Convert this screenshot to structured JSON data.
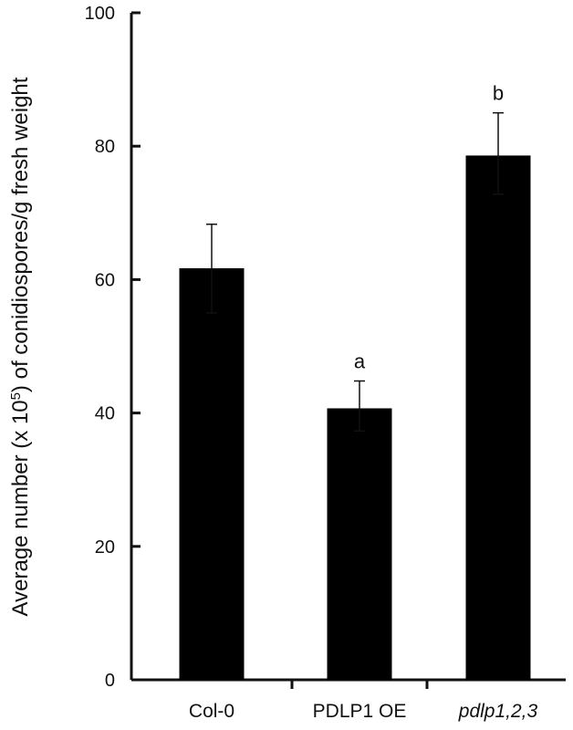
{
  "chart_data": {
    "type": "bar",
    "title": "",
    "xlabel": "",
    "ylabel": {
      "prefix": "Average number (x 10",
      "superscript": "5",
      "suffix": ") of conidiospores/g fresh weight"
    },
    "ylim": [
      0,
      100
    ],
    "yticks": [
      0,
      20,
      40,
      60,
      80,
      100
    ],
    "categories": [
      "Col-0",
      "PDLP1 OE",
      "pdlp1,2,3"
    ],
    "category_italic": [
      false,
      false,
      true
    ],
    "values": [
      61.7,
      40.7,
      78.6
    ],
    "error_low": [
      55.0,
      37.3,
      72.8
    ],
    "error_high": [
      68.3,
      44.8,
      85.0
    ],
    "significance_labels": [
      "",
      "a",
      "b"
    ],
    "grid": false,
    "legend": "none",
    "bar_color": "#000000",
    "axis_color": "#111111"
  }
}
